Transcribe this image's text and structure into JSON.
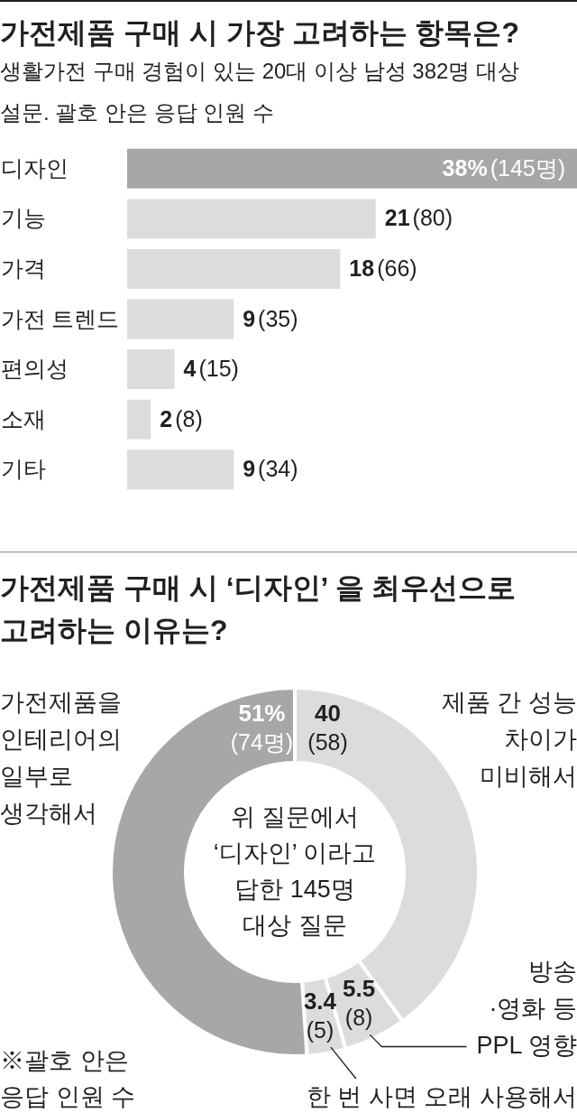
{
  "chart_data": [
    {
      "type": "bar",
      "orientation": "horizontal",
      "title": "가전제품 구매 시 가장 고려하는 항목은?",
      "subtitle": "생활가전 구매 경험이 있는 20대 이상 남성 382명 대상 설문. 괄호 안은 응답 인원 수",
      "categories": [
        "디자인",
        "기능",
        "가격",
        "가전 트렌드",
        "편의성",
        "소재",
        "기타"
      ],
      "values": [
        38,
        21,
        18,
        9,
        4,
        2,
        9
      ],
      "colors": [
        "#a7a7a7",
        "#dcdcdc",
        "#dcdcdc",
        "#dcdcdc",
        "#dcdcdc",
        "#dcdcdc",
        "#dcdcdc"
      ],
      "value_labels": [
        "38%(145명)",
        "21(80)",
        "18(66)",
        "9(35)",
        "4(15)",
        "2(8)",
        "9(34)"
      ],
      "tick_labels": "y"
    },
    {
      "type": "donut",
      "title": "가전제품 구매 시 ‘디자인’ 을 최우선으로 고려하는 이유는?",
      "categories": [
        "제품 간 성능\n차이가\n미비해서",
        "방송\n·영화 등\nPPL 영향",
        "한 번 사면 오래 사용해서",
        "가전제품을\n인테리어의\n일부로\n생각해서"
      ],
      "values": [
        40,
        5.5,
        3.4,
        51
      ],
      "colors": [
        "#dcdcdc",
        "#dcdcdc",
        "#dcdcdc",
        "#a7a7a7"
      ],
      "value_labels": [
        "40\n(58)",
        "5.5\n(8)",
        "3.4\n(5)",
        "51%\n(74명)"
      ],
      "annotations": [
        "위 질문에서\n‘디자인’ 이라고\n답한 145명\n대상 질문",
        "※괄호 안은\n응답 인원 수"
      ]
    }
  ]
}
